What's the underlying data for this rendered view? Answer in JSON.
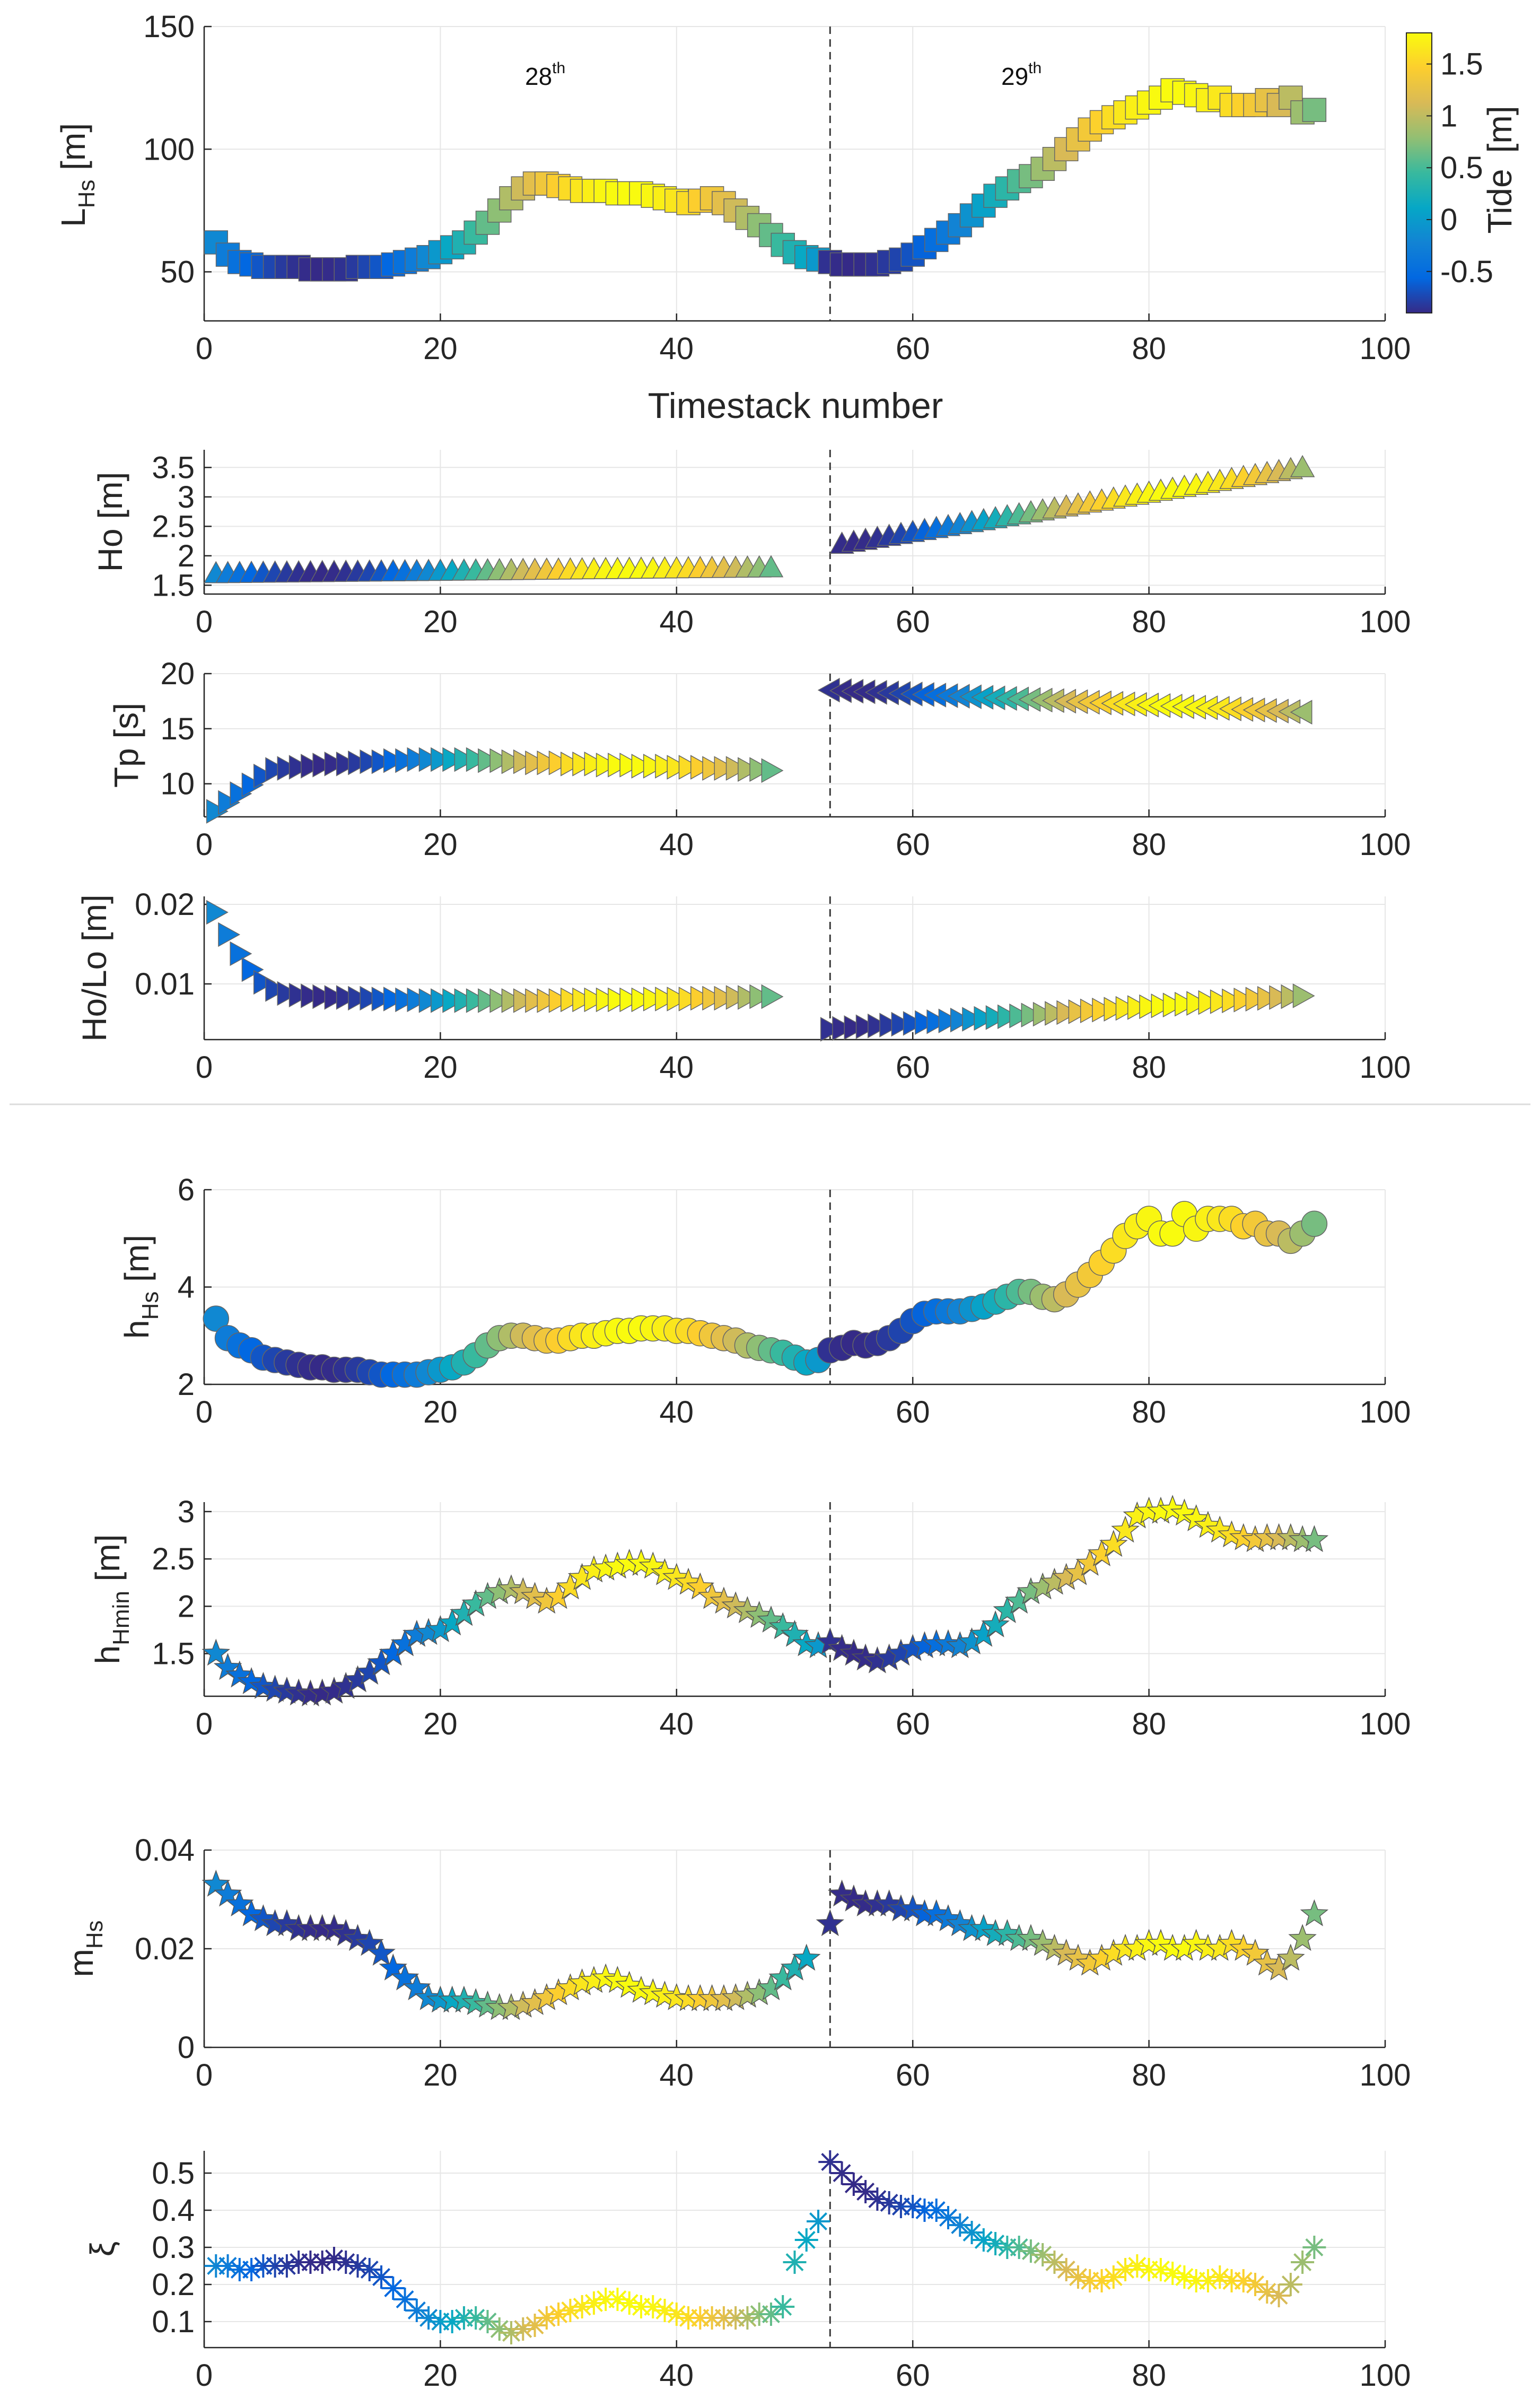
{
  "figure": {
    "top_xlabel": "Timestack number",
    "day1_num": "28",
    "day1_sup": "th",
    "day2_num": "29",
    "day2_sup": "th"
  },
  "colorbar": {
    "label": "Tide",
    "unit": "[m]",
    "ticks": [
      "1.5",
      "1",
      "0.5",
      "0",
      "-0.5"
    ],
    "values": [
      1.5,
      1.0,
      0.5,
      0.0,
      -0.5
    ],
    "range": [
      -0.9,
      1.8
    ]
  },
  "colors": {
    "parula": [
      "#352a87",
      "#0268e1",
      "#1283d4",
      "#06a7c6",
      "#38b99e",
      "#92bf73",
      "#d9ba56",
      "#fcce2e",
      "#f9fb0e"
    ]
  },
  "chart_data": [
    {
      "id": "lhs",
      "type": "scatter",
      "marker": "square",
      "ylabel_main": "L",
      "ylabel_sub": "Hs",
      "ylabel_unit": " [m]",
      "xlim": [
        0,
        100
      ],
      "ylim": [
        30,
        150
      ],
      "yticks": [
        50,
        100,
        150
      ],
      "ytick_labels": [
        "50",
        "100",
        "150"
      ],
      "xticks": [
        0,
        20,
        40,
        60,
        80,
        100
      ],
      "xtick_labels": [
        "0",
        "20",
        "40",
        "60",
        "80",
        "100"
      ],
      "vline": 53,
      "y1": [
        62,
        57,
        54,
        53,
        52,
        52,
        52,
        52,
        51,
        51,
        51,
        51,
        52,
        52,
        52,
        53,
        54,
        55,
        56,
        58,
        60,
        62,
        66,
        70,
        75,
        80,
        84,
        86,
        86,
        85,
        84,
        83,
        83,
        83,
        82,
        82,
        82,
        81,
        80,
        79,
        78,
        79,
        80,
        78,
        75,
        72,
        69,
        65,
        61,
        58,
        56,
        55
      ],
      "y2": [
        54,
        53,
        53,
        53,
        53,
        54,
        55,
        57,
        60,
        63,
        66,
        69,
        73,
        77,
        81,
        84,
        87,
        89,
        92,
        96,
        100,
        104,
        108,
        111,
        113,
        115,
        117,
        119,
        121,
        124,
        123,
        122,
        120,
        121,
        118,
        118,
        118,
        120,
        118,
        121,
        115,
        116
      ]
    },
    {
      "id": "ho",
      "type": "scatter",
      "marker": "triangle-up",
      "ylabel_main": "Ho [m]",
      "xlim": [
        0,
        100
      ],
      "ylim": [
        1.35,
        3.8
      ],
      "yticks": [
        1.5,
        2,
        2.5,
        3,
        3.5
      ],
      "ytick_labels": [
        "1.5",
        "2",
        "2.5",
        "3",
        "3.5"
      ],
      "xticks": [
        0,
        20,
        40,
        60,
        80,
        100
      ],
      "xtick_labels": [
        "0",
        "20",
        "40",
        "60",
        "80",
        "100"
      ],
      "vline": 53,
      "x1": [
        1,
        48
      ],
      "y1": [
        1.7,
        1.8
      ],
      "x2": [
        54,
        93
      ],
      "y2": [
        2.2,
        3.5
      ]
    },
    {
      "id": "tp",
      "type": "scatter",
      "marker": "triangle-right",
      "ylabel_main": "Tp [s]",
      "xlim": [
        0,
        100
      ],
      "ylim": [
        7,
        20
      ],
      "yticks": [
        10,
        15,
        20
      ],
      "ytick_labels": [
        "10",
        "15",
        "20"
      ],
      "xticks": [
        0,
        20,
        40,
        60,
        80,
        100
      ],
      "xtick_labels": [
        "0",
        "20",
        "40",
        "60",
        "80",
        "100"
      ],
      "vline": 53,
      "y1": [
        7.5,
        8.3,
        9.1,
        9.9,
        10.7,
        11.3,
        11.4,
        11.5,
        11.6,
        11.7,
        11.8,
        11.8,
        11.9,
        12.0,
        12.0,
        12.1,
        12.1,
        12.2,
        12.2,
        12.2,
        12.2,
        12.2,
        12.2,
        12.1,
        12.1,
        12.0,
        12.0,
        11.9,
        11.9,
        11.9,
        11.8,
        11.8,
        11.8,
        11.7,
        11.7,
        11.7,
        11.6,
        11.6,
        11.6,
        11.5,
        11.5,
        11.5,
        11.4,
        11.4,
        11.4,
        11.3,
        11.3,
        11.2
      ],
      "x2": [
        53,
        93
      ],
      "y2": [
        18.5,
        16.5
      ]
    },
    {
      "id": "holo",
      "type": "scatter",
      "marker": "triangle-right",
      "ylabel_main": "Ho/Lo [m]",
      "xlim": [
        0,
        100
      ],
      "ylim": [
        0.003,
        0.021
      ],
      "yticks": [
        0.01,
        0.02
      ],
      "ytick_labels": [
        "0.01",
        "0.02"
      ],
      "xticks": [
        0,
        20,
        40,
        60,
        80,
        100
      ],
      "xtick_labels": [
        "0",
        "20",
        "40",
        "60",
        "80",
        "100"
      ],
      "vline": 53,
      "y1": [
        0.019,
        0.0162,
        0.0138,
        0.0118,
        0.0102,
        0.0093,
        0.0088,
        0.0086,
        0.0085,
        0.0084,
        0.0083,
        0.0083,
        0.0082,
        0.0082,
        0.0081,
        0.0081,
        0.008,
        0.008,
        0.0079,
        0.0079,
        0.0079,
        0.0079,
        0.0079,
        0.0079,
        0.0079,
        0.0079,
        0.0079,
        0.0079,
        0.0079,
        0.0079,
        0.008,
        0.008,
        0.008,
        0.008,
        0.008,
        0.008,
        0.008,
        0.0081,
        0.0081,
        0.0081,
        0.0081,
        0.0082,
        0.0082,
        0.0082,
        0.0083,
        0.0083,
        0.0084,
        0.0084
      ],
      "x2": [
        53,
        93
      ],
      "y2": [
        0.0043,
        0.0085
      ]
    },
    {
      "id": "hhs",
      "type": "scatter",
      "marker": "circle",
      "ylabel_main": "h",
      "ylabel_sub": "Hs",
      "ylabel_unit": "  [m]",
      "xlim": [
        0,
        100
      ],
      "ylim": [
        2,
        6
      ],
      "yticks": [
        2,
        4,
        6
      ],
      "ytick_labels": [
        "2",
        "4",
        "6"
      ],
      "xticks": [
        0,
        20,
        40,
        60,
        80,
        100
      ],
      "xtick_labels": [
        "0",
        "20",
        "40",
        "60",
        "80",
        "100"
      ],
      "vline": 53,
      "y1": [
        3.35,
        2.95,
        2.8,
        2.7,
        2.55,
        2.5,
        2.45,
        2.4,
        2.35,
        2.35,
        2.3,
        2.3,
        2.3,
        2.25,
        2.2,
        2.2,
        2.2,
        2.2,
        2.25,
        2.3,
        2.35,
        2.45,
        2.6,
        2.8,
        2.95,
        3.0,
        3.0,
        2.95,
        2.9,
        2.9,
        2.95,
        3.0,
        3.0,
        3.05,
        3.1,
        3.1,
        3.15,
        3.15,
        3.15,
        3.1,
        3.1,
        3.05,
        3.0,
        2.95,
        2.9,
        2.8,
        2.75,
        2.7,
        2.65,
        2.55,
        2.45,
        2.5
      ],
      "y2": [
        2.7,
        2.75,
        2.85,
        2.8,
        2.85,
        2.95,
        3.1,
        3.3,
        3.45,
        3.5,
        3.5,
        3.5,
        3.55,
        3.6,
        3.7,
        3.8,
        3.9,
        3.9,
        3.8,
        3.75,
        3.85,
        4.05,
        4.25,
        4.5,
        4.75,
        5.05,
        5.25,
        5.4,
        5.1,
        5.1,
        5.5,
        5.2,
        5.4,
        5.4,
        5.4,
        5.25,
        5.3,
        5.1,
        5.1,
        4.95,
        5.1,
        5.3
      ]
    },
    {
      "id": "hhmin",
      "type": "scatter",
      "marker": "star",
      "ylabel_main": "h",
      "ylabel_sub": "Hmin",
      "ylabel_unit": " [m]",
      "xlim": [
        0,
        100
      ],
      "ylim": [
        1.05,
        3.1
      ],
      "yticks": [
        1.5,
        2,
        2.5,
        3
      ],
      "ytick_labels": [
        "1.5",
        "2",
        "2.5",
        "3"
      ],
      "xticks": [
        0,
        20,
        40,
        60,
        80,
        100
      ],
      "xtick_labels": [
        "0",
        "20",
        "40",
        "60",
        "80",
        "100"
      ],
      "vline": 53,
      "y1": [
        1.5,
        1.35,
        1.27,
        1.2,
        1.15,
        1.12,
        1.1,
        1.08,
        1.07,
        1.08,
        1.1,
        1.15,
        1.22,
        1.3,
        1.4,
        1.5,
        1.6,
        1.7,
        1.72,
        1.75,
        1.82,
        1.92,
        2.02,
        2.1,
        2.15,
        2.18,
        2.15,
        2.1,
        2.05,
        2.1,
        2.2,
        2.3,
        2.38,
        2.4,
        2.42,
        2.45,
        2.45,
        2.42,
        2.35,
        2.3,
        2.25,
        2.2,
        2.1,
        2.05,
        2.0,
        1.95,
        1.9,
        1.85,
        1.78,
        1.7,
        1.6,
        1.58
      ],
      "y2": [
        1.62,
        1.55,
        1.5,
        1.45,
        1.42,
        1.45,
        1.5,
        1.55,
        1.58,
        1.6,
        1.6,
        1.58,
        1.62,
        1.7,
        1.8,
        1.95,
        2.05,
        2.15,
        2.2,
        2.25,
        2.3,
        2.35,
        2.45,
        2.55,
        2.65,
        2.8,
        2.95,
        3.0,
        3.0,
        3.02,
        2.98,
        2.92,
        2.85,
        2.8,
        2.75,
        2.72,
        2.7,
        2.72,
        2.72,
        2.72,
        2.7,
        2.7
      ]
    },
    {
      "id": "mhs",
      "type": "scatter",
      "marker": "star",
      "ylabel_main": "m",
      "ylabel_sub": "Hs",
      "ylabel_unit": "",
      "xlim": [
        0,
        100
      ],
      "ylim": [
        0,
        0.04
      ],
      "yticks": [
        0,
        0.02,
        0.04
      ],
      "ytick_labels": [
        "0",
        "0.02",
        "0.04"
      ],
      "xticks": [
        0,
        20,
        40,
        60,
        80,
        100
      ],
      "xtick_labels": [
        "0",
        "20",
        "40",
        "60",
        "80",
        "100"
      ],
      "vline": 53,
      "y1": [
        0.033,
        0.031,
        0.029,
        0.027,
        0.026,
        0.025,
        0.025,
        0.024,
        0.024,
        0.024,
        0.024,
        0.023,
        0.022,
        0.021,
        0.019,
        0.016,
        0.014,
        0.012,
        0.01,
        0.0095,
        0.0095,
        0.0095,
        0.009,
        0.0085,
        0.008,
        0.008,
        0.0085,
        0.009,
        0.01,
        0.011,
        0.012,
        0.013,
        0.0135,
        0.014,
        0.0135,
        0.0125,
        0.0115,
        0.011,
        0.0105,
        0.01,
        0.0098,
        0.0098,
        0.0098,
        0.0098,
        0.01,
        0.0105,
        0.011,
        0.012,
        0.014,
        0.016,
        0.018
      ],
      "y2": [
        0.025,
        0.031,
        0.03,
        0.029,
        0.029,
        0.029,
        0.028,
        0.028,
        0.027,
        0.027,
        0.026,
        0.025,
        0.024,
        0.024,
        0.023,
        0.023,
        0.022,
        0.022,
        0.021,
        0.02,
        0.019,
        0.018,
        0.017,
        0.018,
        0.019,
        0.02,
        0.02,
        0.021,
        0.021,
        0.02,
        0.02,
        0.021,
        0.02,
        0.02,
        0.021,
        0.02,
        0.019,
        0.017,
        0.016,
        0.018,
        0.022,
        0.027
      ]
    },
    {
      "id": "xi",
      "type": "scatter",
      "marker": "asterisk",
      "ylabel_main": "ξ",
      "ylabel_unit": "",
      "xlim": [
        0,
        100
      ],
      "ylim": [
        0.03,
        0.56
      ],
      "yticks": [
        0.1,
        0.2,
        0.3,
        0.4,
        0.5
      ],
      "ytick_labels": [
        "0.1",
        "0.2",
        "0.3",
        "0.4",
        "0.5"
      ],
      "xticks": [
        0,
        20,
        40,
        60,
        80,
        100
      ],
      "xtick_labels": [
        "0",
        "20",
        "40",
        "60",
        "80",
        "100"
      ],
      "vline": 53,
      "y1": [
        0.25,
        0.25,
        0.24,
        0.24,
        0.25,
        0.25,
        0.25,
        0.26,
        0.26,
        0.26,
        0.27,
        0.26,
        0.25,
        0.24,
        0.22,
        0.19,
        0.16,
        0.13,
        0.11,
        0.1,
        0.1,
        0.11,
        0.11,
        0.1,
        0.08,
        0.07,
        0.08,
        0.09,
        0.11,
        0.12,
        0.13,
        0.14,
        0.15,
        0.16,
        0.16,
        0.15,
        0.14,
        0.14,
        0.13,
        0.12,
        0.11,
        0.11,
        0.11,
        0.11,
        0.11,
        0.11,
        0.12,
        0.12,
        0.14,
        0.26,
        0.32,
        0.37
      ],
      "y2": [
        0.53,
        0.5,
        0.47,
        0.45,
        0.43,
        0.42,
        0.41,
        0.41,
        0.4,
        0.4,
        0.38,
        0.36,
        0.34,
        0.32,
        0.31,
        0.3,
        0.3,
        0.29,
        0.28,
        0.26,
        0.24,
        0.22,
        0.21,
        0.21,
        0.22,
        0.24,
        0.25,
        0.24,
        0.24,
        0.23,
        0.22,
        0.21,
        0.21,
        0.22,
        0.21,
        0.21,
        0.2,
        0.18,
        0.17,
        0.2,
        0.26,
        0.3
      ]
    }
  ]
}
